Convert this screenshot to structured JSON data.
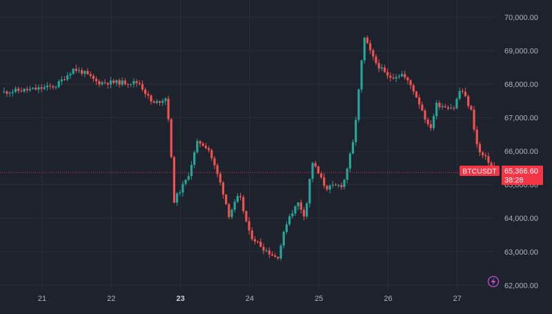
{
  "chart_data": {
    "type": "candlestick",
    "symbol": "BTCUSDT",
    "last_price": "65,366.60",
    "countdown": "38:28",
    "ylim": [
      61800,
      70500
    ],
    "y_ticks": [
      "70,000.00",
      "69,000.00",
      "68,000.00",
      "67,000.00",
      "66,000.00",
      "65,000.00",
      "64,000.00",
      "63,000.00",
      "62,000.00"
    ],
    "y_tick_values": [
      70000,
      69000,
      68000,
      67000,
      66000,
      65000,
      64000,
      63000,
      62000
    ],
    "x_ticks": [
      {
        "label": "21",
        "day": 21,
        "bold": false
      },
      {
        "label": "22",
        "day": 22,
        "bold": false
      },
      {
        "label": "23",
        "day": 23,
        "bold": true
      },
      {
        "label": "24",
        "day": 24,
        "bold": false
      },
      {
        "label": "25",
        "day": 25,
        "bold": false
      },
      {
        "label": "26",
        "day": 26,
        "bold": false
      },
      {
        "label": "27",
        "day": 27,
        "bold": false
      }
    ],
    "grid": true,
    "colors": {
      "up": "#26a69a",
      "down": "#ef5350",
      "background": "#1e222d",
      "grid": "#2a2e39",
      "axis_text": "#b2b5be",
      "price_label": "#f23645"
    },
    "key_points": [
      [
        20.4,
        67750
      ],
      [
        20.6,
        67800
      ],
      [
        20.9,
        67850
      ],
      [
        21.2,
        67950
      ],
      [
        21.45,
        68450
      ],
      [
        21.6,
        68350
      ],
      [
        21.8,
        68050
      ],
      [
        22.0,
        68050
      ],
      [
        22.3,
        68050
      ],
      [
        22.4,
        68050
      ],
      [
        22.6,
        67400
      ],
      [
        22.8,
        67600
      ],
      [
        22.85,
        66400
      ],
      [
        22.9,
        64500
      ],
      [
        23.1,
        65200
      ],
      [
        23.25,
        66300
      ],
      [
        23.4,
        66100
      ],
      [
        23.6,
        64900
      ],
      [
        23.7,
        64100
      ],
      [
        23.85,
        64700
      ],
      [
        24.0,
        63500
      ],
      [
        24.2,
        63100
      ],
      [
        24.4,
        62800
      ],
      [
        24.55,
        64000
      ],
      [
        24.7,
        64450
      ],
      [
        24.8,
        64050
      ],
      [
        24.9,
        65700
      ],
      [
        25.1,
        64900
      ],
      [
        25.35,
        65000
      ],
      [
        25.5,
        66300
      ],
      [
        25.6,
        68300
      ],
      [
        25.65,
        69400
      ],
      [
        25.8,
        68700
      ],
      [
        26.0,
        68200
      ],
      [
        26.2,
        68300
      ],
      [
        26.35,
        67900
      ],
      [
        26.5,
        67200
      ],
      [
        26.6,
        66600
      ],
      [
        26.7,
        67400
      ],
      [
        26.95,
        67300
      ],
      [
        27.05,
        67900
      ],
      [
        27.2,
        67200
      ],
      [
        27.3,
        66000
      ],
      [
        27.45,
        65700
      ],
      [
        27.55,
        65370
      ]
    ]
  },
  "badges": {
    "flash_icon": "lightning-icon"
  }
}
